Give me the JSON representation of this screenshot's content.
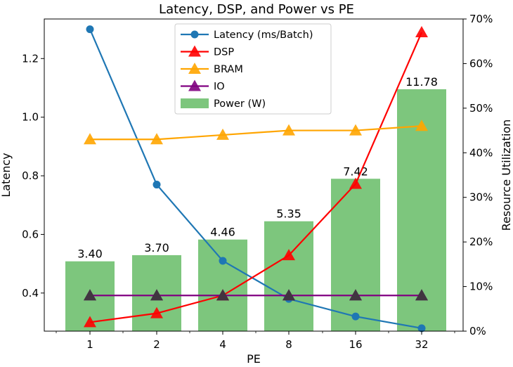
{
  "chart_data": {
    "type": "bar",
    "title": "Latency, DSP, and Power vs PE",
    "xlabel": "PE",
    "ylabel_left": "Latency",
    "ylabel_right": "Resource Utilization",
    "categories": [
      "1",
      "2",
      "4",
      "8",
      "16",
      "32"
    ],
    "left_axis": {
      "ylim": [
        0.27,
        1.335
      ],
      "ticks": [
        "0.4",
        "0.6",
        "0.8",
        "1.0",
        "1.2"
      ],
      "tick_values": [
        0.4,
        0.6,
        0.8,
        1.0,
        1.2
      ]
    },
    "right_axis": {
      "ylim": [
        0,
        70
      ],
      "ticks": [
        "0%",
        "10%",
        "20%",
        "30%",
        "40%",
        "50%",
        "60%",
        "70%"
      ],
      "tick_values": [
        0,
        10,
        20,
        30,
        40,
        50,
        60,
        70
      ]
    },
    "series": [
      {
        "name": "Latency (ms/Batch)",
        "kind": "line",
        "axis": "left",
        "color": "#1f77b4",
        "marker": "circle",
        "values": [
          1.3,
          0.77,
          0.51,
          0.38,
          0.32,
          0.28
        ]
      },
      {
        "name": "DSP",
        "kind": "line",
        "axis": "right",
        "color": "#ff0000",
        "marker": "triangle",
        "values": [
          2,
          4,
          8,
          17,
          33,
          67
        ]
      },
      {
        "name": "BRAM",
        "kind": "line",
        "axis": "right",
        "color": "#ffa500",
        "marker": "triangle",
        "values": [
          43,
          43,
          44,
          45,
          45,
          46
        ]
      },
      {
        "name": "IO",
        "kind": "line",
        "axis": "right",
        "color": "#800080",
        "marker": "triangle",
        "values": [
          8,
          8,
          8,
          8,
          8,
          8
        ]
      },
      {
        "name": "Power (W)",
        "kind": "bar",
        "axis": "hidden",
        "color": "#5cb85c",
        "values": [
          3.4,
          3.7,
          4.46,
          5.35,
          7.42,
          11.78
        ],
        "labels": [
          "3.40",
          "3.70",
          "4.46",
          "5.35",
          "7.42",
          "11.78"
        ]
      }
    ],
    "grid": false,
    "legend_position": "top-center"
  }
}
